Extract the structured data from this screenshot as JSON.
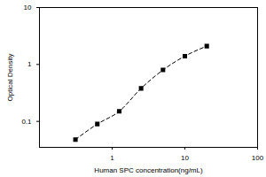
{
  "chart_data": {
    "type": "scatter",
    "x_label": "Human SPC concentration(ng/mL)",
    "y_label": "Optical Density",
    "log": true,
    "xlim": [
      0.1,
      100
    ],
    "xticks": [
      1,
      10,
      100
    ],
    "ylim": [
      0.035,
      10
    ],
    "yticks": [
      0.1,
      1,
      10
    ],
    "grid": false,
    "series": [
      {
        "name": "Human SPC",
        "color": "#000000",
        "marker": "square",
        "line_style": "dashed",
        "x": [
          0.3125,
          0.625,
          1.25,
          2.5,
          5,
          10,
          20
        ],
        "values": [
          0.048,
          0.09,
          0.15,
          0.38,
          0.8,
          1.4,
          2.1
        ]
      }
    ]
  }
}
